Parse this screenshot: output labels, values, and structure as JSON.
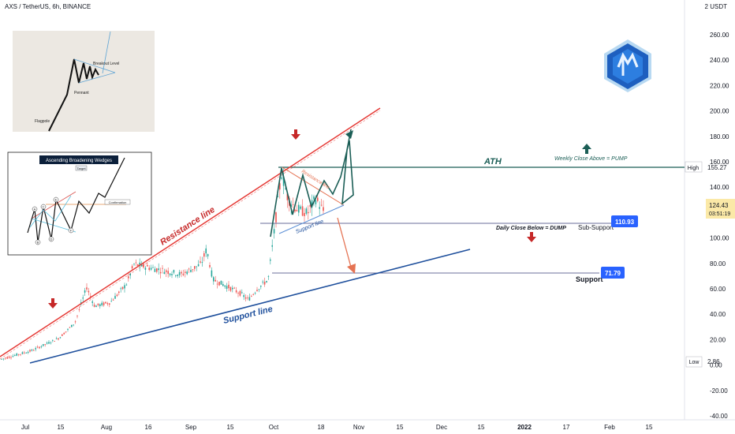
{
  "header": {
    "symbol": "AXS / TetherUS, 6h, BINANCE",
    "unit": "2 USDT"
  },
  "price_axis": {
    "ticks": [
      "260.00",
      "240.00",
      "220.00",
      "200.00",
      "180.00",
      "160.00",
      "140.00",
      "120.00",
      "100.00",
      "80.00",
      "60.00",
      "40.00",
      "20.00",
      "0.00",
      "-20.00",
      "-40.00"
    ]
  },
  "time_axis": {
    "ticks": [
      "Jul",
      "15",
      "Aug",
      "16",
      "Sep",
      "15",
      "Oct",
      "18",
      "Nov",
      "15",
      "Dec",
      "15",
      "2022",
      "17",
      "Feb",
      "15"
    ]
  },
  "labels": {
    "high_tag": "High",
    "high_value": "155.27",
    "low_tag": "Low",
    "low_value": "2.86",
    "last_price": "124.43",
    "countdown": "03:51:19",
    "subsupport_value": "110.93",
    "subsupport_text": "Sub-Support",
    "support_value": "71.79",
    "support_text": "Support",
    "ath": "ATH",
    "weekly": "Weekly Close Above = PUMP",
    "daily": "Daily Close Below = DUMP",
    "resistance_line": "Resistance line",
    "support_line": "Support line",
    "small_resistance": "Resistance line",
    "small_support": "Support line"
  },
  "inset_pennant": {
    "flagpole": "Flagpole",
    "pennant": "Pennant",
    "breakout": "Breakout Level"
  },
  "inset_wedge": {
    "title": "Ascending Broadening Wedges",
    "target": "Target",
    "confirmation": "Confirmation",
    "points": [
      "A",
      "B",
      "C",
      "D",
      "E",
      "F"
    ]
  },
  "colors": {
    "resistance": "#e53935",
    "support": "#1e4f9c",
    "pattern": "#1b5e56",
    "dump": "#e57353",
    "tag": "#2962ff"
  },
  "chart_data": {
    "type": "candlestick",
    "title": "AXS / TetherUS, 6h, BINANCE",
    "ylim": [
      -40,
      270
    ],
    "price_series": [
      {
        "x": "Jul 1",
        "y": 3
      },
      {
        "x": "Jul 10",
        "y": 12
      },
      {
        "x": "Jul 18",
        "y": 22
      },
      {
        "x": "Jul 22",
        "y": 30
      },
      {
        "x": "Jul 26",
        "y": 55
      },
      {
        "x": "Jul 30",
        "y": 35
      },
      {
        "x": "Aug 3",
        "y": 45
      },
      {
        "x": "Aug 8",
        "y": 60
      },
      {
        "x": "Aug 12",
        "y": 75
      },
      {
        "x": "Aug 20",
        "y": 72
      },
      {
        "x": "Aug 28",
        "y": 70
      },
      {
        "x": "Sep 5",
        "y": 73
      },
      {
        "x": "Sep 7",
        "y": 90
      },
      {
        "x": "Sep 12",
        "y": 66
      },
      {
        "x": "Sep 20",
        "y": 58
      },
      {
        "x": "Sep 25",
        "y": 50
      },
      {
        "x": "Sep 30",
        "y": 62
      },
      {
        "x": "Oct 3",
        "y": 105
      },
      {
        "x": "Oct 5",
        "y": 150
      },
      {
        "x": "Oct 8",
        "y": 125
      },
      {
        "x": "Oct 12",
        "y": 118
      },
      {
        "x": "Oct 15",
        "y": 130
      }
    ],
    "levels": {
      "high": 155.27,
      "sub_support": 110.93,
      "support": 71.79,
      "low": 2.86,
      "last": 124.43
    }
  }
}
